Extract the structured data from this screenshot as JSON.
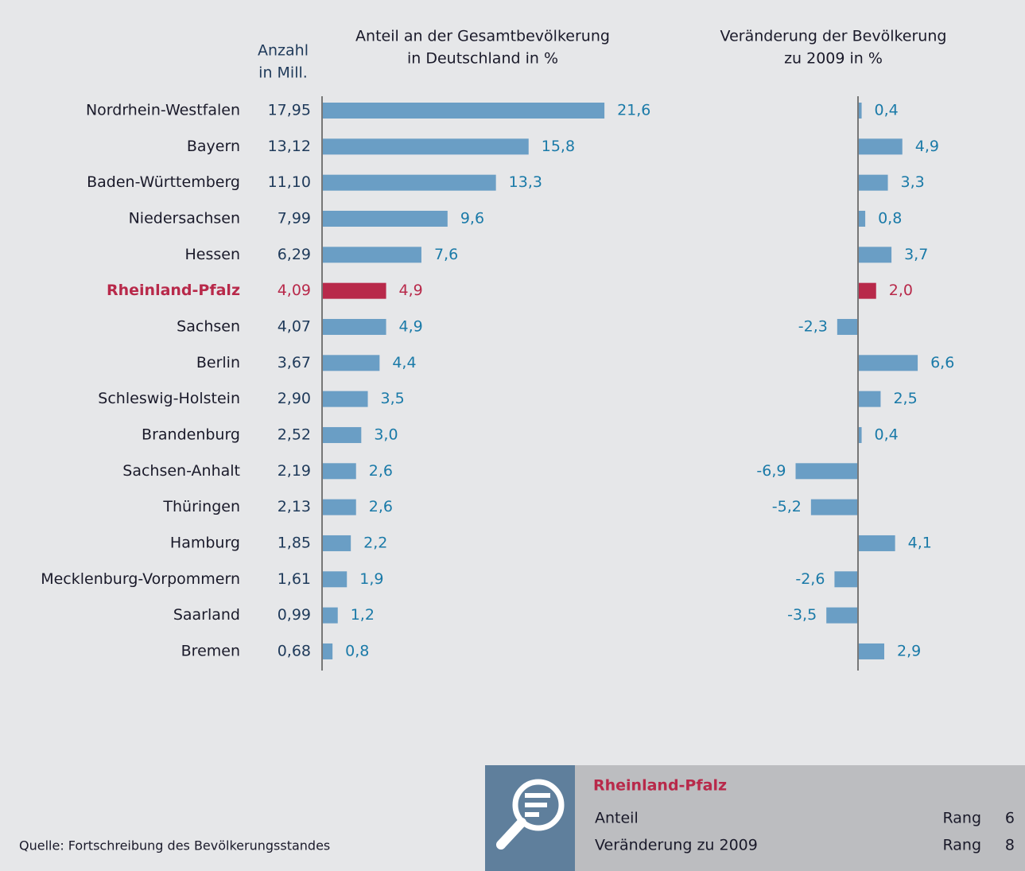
{
  "chart_data": [
    {
      "type": "bar",
      "orientation": "horizontal",
      "title": [
        "Anteil an der Gesamtbevölkerung",
        "in Deutschland in %"
      ],
      "categories": [
        "Nordrhein-Westfalen",
        "Bayern",
        "Baden-Württemberg",
        "Niedersachsen",
        "Hessen",
        "Rheinland-Pfalz",
        "Sachsen",
        "Berlin",
        "Schleswig-Holstein",
        "Brandenburg",
        "Sachsen-Anhalt",
        "Thüringen",
        "Hamburg",
        "Mecklenburg-Vorpommern",
        "Saarland",
        "Bremen"
      ],
      "values": [
        21.6,
        15.8,
        13.3,
        9.6,
        7.6,
        4.9,
        4.9,
        4.4,
        3.5,
        3.0,
        2.6,
        2.6,
        2.2,
        1.9,
        1.2,
        0.8
      ],
      "value_labels": [
        "21,6",
        "15,8",
        "13,3",
        "9,6",
        "7,6",
        "4,9",
        "4,9",
        "4,4",
        "3,5",
        "3,0",
        "2,6",
        "2,6",
        "2,2",
        "1,9",
        "1,2",
        "0,8"
      ],
      "xlim": [
        0,
        25
      ],
      "color": "#6a9ec5",
      "highlight_color": "#b8294a",
      "highlight_index": 5
    },
    {
      "type": "bar",
      "orientation": "horizontal",
      "title": [
        "Veränderung der Bevölkerung",
        "zu 2009 in %"
      ],
      "values": [
        0.4,
        4.9,
        3.3,
        0.8,
        3.7,
        2.0,
        -2.3,
        6.6,
        2.5,
        0.4,
        -6.9,
        -5.2,
        4.1,
        -2.6,
        -3.5,
        2.9
      ],
      "value_labels": [
        "0,4",
        "4,9",
        "3,3",
        "0,8",
        "3,7",
        "2,0",
        "-2,3",
        "6,6",
        "2,5",
        "0,4",
        "-6,9",
        "-5,2",
        "4,1",
        "-2,6",
        "-3,5",
        "2,9"
      ],
      "xlim": [
        -8,
        8
      ],
      "color": "#6a9ec5",
      "highlight_color": "#b8294a",
      "highlight_index": 5
    }
  ],
  "count_header": [
    "Anzahl",
    "in Mill."
  ],
  "counts": [
    "17,95",
    "13,12",
    "11,10",
    "7,99",
    "6,29",
    "4,09",
    "4,07",
    "3,67",
    "2,90",
    "2,52",
    "2,19",
    "2,13",
    "1,85",
    "1,61",
    "0,99",
    "0,68"
  ],
  "source": "Quelle: Fortschreibung des Bevölkerungsstandes",
  "info_box": {
    "title": "Rheinland-Pfalz",
    "rows": [
      {
        "label": "Anteil",
        "rank_label": "Rang",
        "rank": 6
      },
      {
        "label": "Veränderung zu 2009",
        "rank_label": "Rang",
        "rank": 8
      }
    ]
  }
}
